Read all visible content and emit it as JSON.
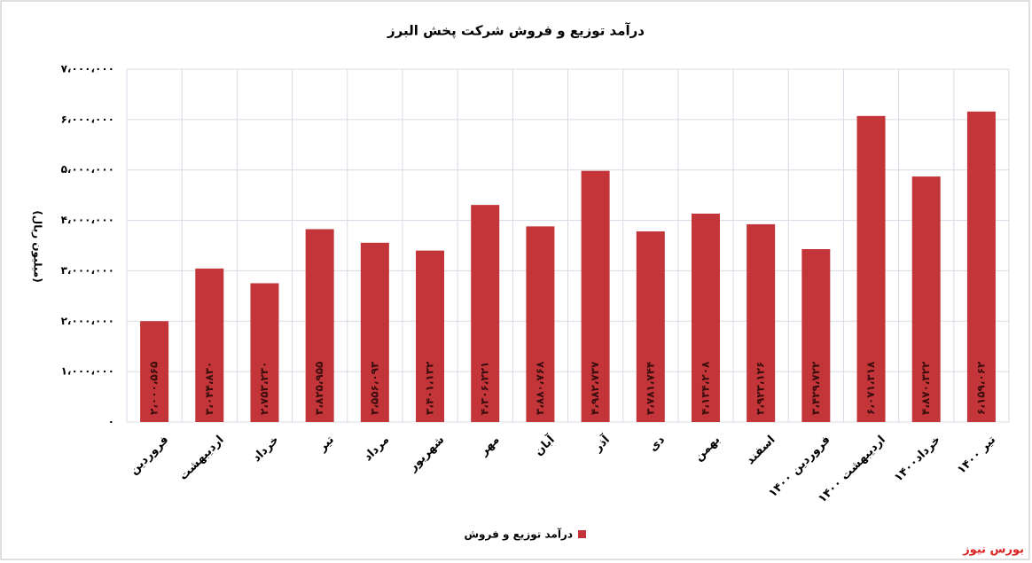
{
  "chart_data": {
    "type": "bar",
    "title": "درآمد توزیع و فروش شرکت پخش البرز",
    "y_label": "(میلیون ریال)",
    "categories": [
      "فروردین",
      "اردیبهشت",
      "خرداد",
      "تیر",
      "مرداد",
      "شهریور",
      "مهر",
      "آبان",
      "آذر",
      "دی",
      "بهمن",
      "اسفند",
      "فروردین ۱۴۰۰",
      "اردیبهشت ۱۴۰۰",
      "خرداد۱۴۰۰",
      "تیر ۱۴۰۰"
    ],
    "series": [
      {
        "name": "درآمد توزیع و فروش",
        "color": "#c4353a",
        "values": [
          2000565,
          3044830,
          2753230,
          3825955,
          3556093,
          3401132,
          4306221,
          3880768,
          4982737,
          3781744,
          4134208,
          3923126,
          3429722,
          6071318,
          4870322,
          6159062
        ],
        "value_labels": [
          "۲،۰۰۰،۵۶۵",
          "۳،۰۴۴،۸۳۰",
          "۲،۷۵۳،۲۳۰",
          "۳،۸۲۵،۹۵۵",
          "۳،۵۵۶،۰۹۳",
          "۳،۴۰۱،۱۳۲",
          "۴،۳۰۶،۲۲۱",
          "۳،۸۸۰،۷۶۸",
          "۴،۹۸۲،۷۳۷",
          "۳،۷۸۱،۷۴۴",
          "۴،۱۳۴،۲۰۸",
          "۳،۹۲۳،۱۲۶",
          "۳،۴۲۹،۷۲۲",
          "۶،۰۷۱،۳۱۸",
          "۴،۸۷۰،۳۲۲",
          "۶،۱۵۹،۰۶۲"
        ]
      }
    ],
    "ylim": [
      0,
      7000000
    ],
    "yticks": [
      {
        "value": 0,
        "label": "۰"
      },
      {
        "value": 1000000,
        "label": "۱،۰۰۰،۰۰۰"
      },
      {
        "value": 2000000,
        "label": "۲،۰۰۰،۰۰۰"
      },
      {
        "value": 3000000,
        "label": "۳،۰۰۰،۰۰۰"
      },
      {
        "value": 4000000,
        "label": "۴،۰۰۰،۰۰۰"
      },
      {
        "value": 5000000,
        "label": "۵،۰۰۰،۰۰۰"
      },
      {
        "value": 6000000,
        "label": "۶،۰۰۰،۰۰۰"
      },
      {
        "value": 7000000,
        "label": "۷،۰۰۰،۰۰۰"
      }
    ],
    "grid": true,
    "legend": "bottom",
    "watermark": "بورس نیوز"
  }
}
